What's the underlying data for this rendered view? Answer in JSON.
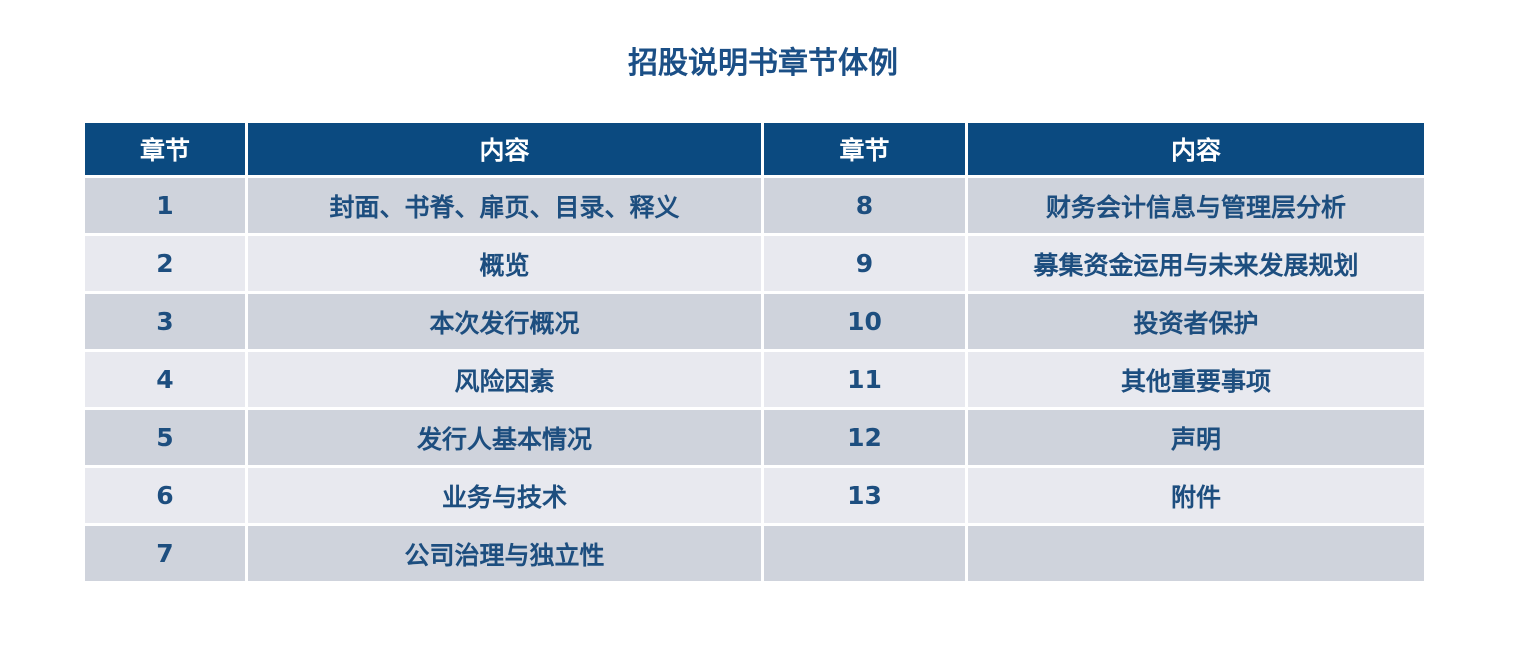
{
  "title": "招股说明书章节体例",
  "table": {
    "headers": [
      "章节",
      "内容",
      "章节",
      "内容"
    ],
    "rows": [
      [
        "1",
        "封面、书脊、扉页、目录、释义",
        "8",
        "财务会计信息与管理层分析"
      ],
      [
        "2",
        "概览",
        "9",
        "募集资金运用与未来发展规划"
      ],
      [
        "3",
        "本次发行概况",
        "10",
        "投资者保护"
      ],
      [
        "4",
        "风险因素",
        "11",
        "其他重要事项"
      ],
      [
        "5",
        "发行人基本情况",
        "12",
        "声明"
      ],
      [
        "6",
        "业务与技术",
        "13",
        "附件"
      ],
      [
        "7",
        "公司治理与独立性",
        "",
        ""
      ]
    ]
  },
  "colors": {
    "header": "#0b4a80",
    "row_odd": "#cfd3dc",
    "row_even": "#e8e9ef",
    "text": "#1d4e7f"
  }
}
